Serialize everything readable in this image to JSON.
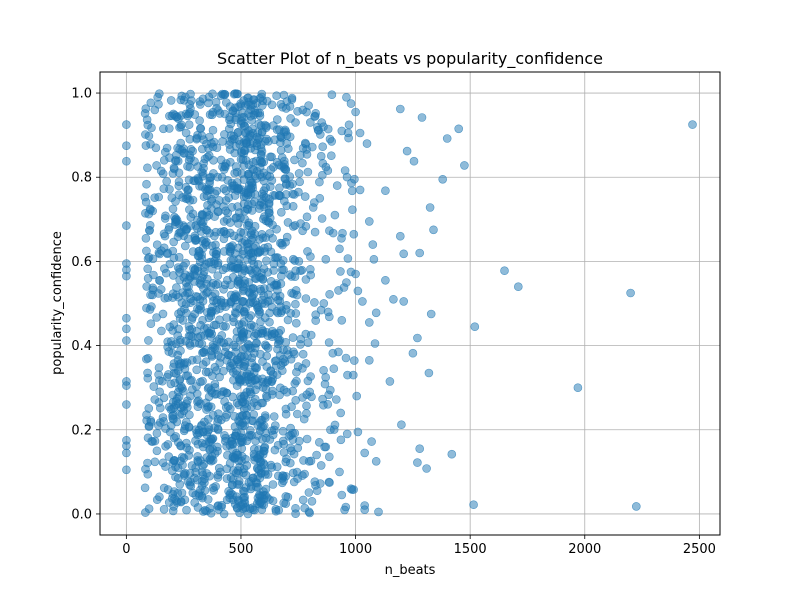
{
  "chart_data": {
    "type": "scatter",
    "title": "Scatter Plot of n_beats vs popularity_confidence",
    "xlabel": "n_beats",
    "ylabel": "popularity_confidence",
    "xlim": [
      -115,
      2590
    ],
    "ylim": [
      -0.05,
      1.05
    ],
    "x_ticks": [
      0,
      500,
      1000,
      1500,
      2000,
      2500
    ],
    "y_ticks": [
      0.0,
      0.2,
      0.4,
      0.6,
      0.8,
      1.0
    ],
    "x_tick_labels": [
      "0",
      "500",
      "1000",
      "1500",
      "2000",
      "2500"
    ],
    "y_tick_labels": [
      "0.0",
      "0.2",
      "0.4",
      "0.6",
      "0.8",
      "1.0"
    ],
    "grid": true,
    "marker_color": "#1f77b4",
    "marker_alpha": 0.5,
    "points": [
      [
        0,
        0.925
      ],
      [
        0,
        0.875
      ],
      [
        0,
        0.838
      ],
      [
        0,
        0.685
      ],
      [
        0,
        0.595
      ],
      [
        0,
        0.58
      ],
      [
        0,
        0.565
      ],
      [
        0,
        0.465
      ],
      [
        0,
        0.44
      ],
      [
        0,
        0.412
      ],
      [
        0,
        0.315
      ],
      [
        0,
        0.305
      ],
      [
        0,
        0.26
      ],
      [
        0,
        0.175
      ],
      [
        0,
        0.162
      ],
      [
        0,
        0.145
      ],
      [
        0,
        0.105
      ],
      [
        1195,
        0.962
      ],
      [
        1290,
        0.942
      ],
      [
        1400,
        0.892
      ],
      [
        1450,
        0.915
      ],
      [
        1225,
        0.862
      ],
      [
        1255,
        0.838
      ],
      [
        1475,
        0.828
      ],
      [
        1380,
        0.795
      ],
      [
        1130,
        0.768
      ],
      [
        1195,
        0.66
      ],
      [
        1325,
        0.728
      ],
      [
        1340,
        0.675
      ],
      [
        1210,
        0.618
      ],
      [
        1280,
        0.62
      ],
      [
        1130,
        0.555
      ],
      [
        1165,
        0.51
      ],
      [
        1210,
        0.505
      ],
      [
        1330,
        0.475
      ],
      [
        1270,
        0.418
      ],
      [
        1250,
        0.382
      ],
      [
        1320,
        0.335
      ],
      [
        1150,
        0.315
      ],
      [
        1200,
        0.212
      ],
      [
        1280,
        0.155
      ],
      [
        1270,
        0.122
      ],
      [
        1310,
        0.108
      ],
      [
        1420,
        0.142
      ],
      [
        1520,
        0.445
      ],
      [
        1650,
        0.578
      ],
      [
        1710,
        0.54
      ],
      [
        1970,
        0.3
      ],
      [
        2200,
        0.525
      ],
      [
        2470,
        0.925
      ],
      [
        1515,
        0.022
      ],
      [
        2225,
        0.018
      ],
      [
        1100,
        0.005
      ],
      [
        1040,
        0.02
      ],
      [
        1040,
        0.01
      ],
      [
        1000,
        0.955
      ],
      [
        980,
        0.975
      ],
      [
        1050,
        0.88
      ],
      [
        1020,
        0.905
      ],
      [
        1060,
        0.695
      ],
      [
        1075,
        0.64
      ],
      [
        1080,
        0.605
      ],
      [
        1090,
        0.478
      ],
      [
        1060,
        0.455
      ],
      [
        1085,
        0.405
      ],
      [
        1060,
        0.365
      ],
      [
        1070,
        0.172
      ],
      [
        1090,
        0.125
      ],
      [
        1040,
        0.145
      ],
      [
        1000,
        0.57
      ],
      [
        1020,
        0.77
      ],
      [
        980,
        0.575
      ],
      [
        1010,
        0.53
      ],
      [
        1030,
        0.505
      ],
      [
        1005,
        0.28
      ],
      [
        990,
        0.33
      ],
      [
        1010,
        0.195
      ],
      [
        960,
        0.99
      ],
      [
        940,
        0.91
      ],
      [
        920,
        0.78
      ],
      [
        910,
        0.71
      ],
      [
        930,
        0.63
      ],
      [
        960,
        0.55
      ],
      [
        940,
        0.46
      ],
      [
        925,
        0.385
      ],
      [
        935,
        0.24
      ],
      [
        930,
        0.1
      ],
      [
        940,
        0.045
      ],
      [
        980,
        0.06
      ],
      [
        890,
        0.2
      ],
      [
        905,
        0.345
      ],
      [
        880,
        0.48
      ],
      [
        870,
        0.605
      ],
      [
        860,
        0.92
      ],
      [
        850,
        0.85
      ],
      [
        820,
        0.74
      ],
      [
        800,
        0.29
      ],
      [
        830,
        0.14
      ],
      [
        810,
        0.03
      ],
      [
        770,
        0.96
      ],
      [
        760,
        0.69
      ],
      [
        745,
        0.52
      ],
      [
        735,
        0.31
      ],
      [
        720,
        0.15
      ],
      [
        700,
        0.98
      ],
      [
        690,
        0.82
      ],
      [
        680,
        0.58
      ],
      [
        665,
        0.43
      ],
      [
        650,
        0.21
      ],
      [
        640,
        0.07
      ],
      [
        705,
        0.04
      ]
    ],
    "dense_seed": 20240601,
    "dense_bands": [
      {
        "x_range": [
          80,
          200
        ],
        "count": 150
      },
      {
        "x_range": [
          200,
          460
        ],
        "count": 700
      },
      {
        "x_range": [
          460,
          600
        ],
        "count": 560
      },
      {
        "x_range": [
          600,
          700
        ],
        "count": 220
      },
      {
        "x_range": [
          700,
          800
        ],
        "count": 110
      },
      {
        "x_range": [
          800,
          900
        ],
        "count": 60
      },
      {
        "x_range": [
          900,
          1000
        ],
        "count": 30
      }
    ]
  }
}
